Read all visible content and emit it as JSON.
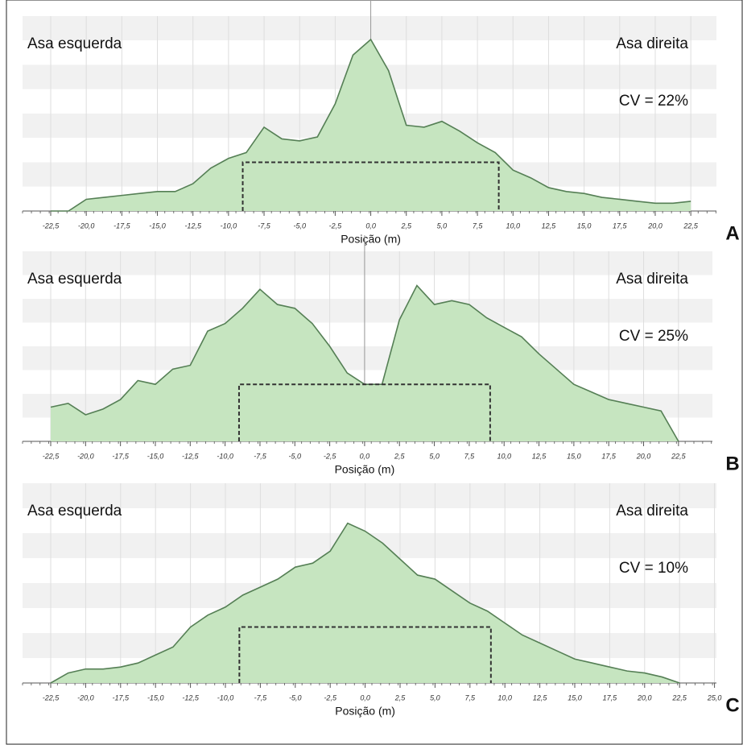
{
  "chart_data": [
    {
      "type": "area",
      "panel": "A",
      "xlabel": "Posição (m)",
      "annotations": [
        "Asa esquerda",
        "Asa direita",
        "CV = 22%"
      ],
      "color": "#c6e5c0",
      "line_color": "#557f55",
      "x": [
        -22.5,
        -21.25,
        -20,
        -18.75,
        -17.5,
        -16.25,
        -15,
        -13.75,
        -12.5,
        -11.25,
        -10,
        -8.75,
        -7.5,
        -6.25,
        -5,
        -3.75,
        -2.5,
        -1.25,
        0,
        1.25,
        2.5,
        3.75,
        5,
        6.25,
        7.5,
        8.75,
        10,
        11.25,
        12.5,
        13.75,
        15,
        16.25,
        17.5,
        18.75,
        20,
        21.25,
        22.5
      ],
      "values": [
        0,
        0,
        6,
        7,
        8,
        9,
        10,
        10,
        14,
        22,
        27,
        30,
        43,
        37,
        36,
        38,
        55,
        80,
        88,
        72,
        44,
        43,
        46,
        41,
        35,
        30,
        21,
        17,
        12,
        10,
        9,
        7,
        6,
        5,
        4,
        4,
        5
      ],
      "swath": {
        "x": [
          -9,
          9
        ],
        "y": 25
      },
      "ylim": [
        0,
        100
      ],
      "xticks": [
        {
          "value": -22.5,
          "label": "-22,5"
        },
        {
          "value": -20,
          "label": "-20,0"
        },
        {
          "value": -17.5,
          "label": "-17,5"
        },
        {
          "value": -15,
          "label": "-15,0"
        },
        {
          "value": -12.5,
          "label": "-12,5"
        },
        {
          "value": -10,
          "label": "-10,0"
        },
        {
          "value": -7.5,
          "label": "-7,5"
        },
        {
          "value": -5,
          "label": "-5,0"
        },
        {
          "value": -2.5,
          "label": "-2,5"
        },
        {
          "value": 0,
          "label": "0,0"
        },
        {
          "value": 2.5,
          "label": "2,5"
        },
        {
          "value": 5,
          "label": "5,0"
        },
        {
          "value": 7.5,
          "label": "7,5"
        },
        {
          "value": 10,
          "label": "10,0"
        },
        {
          "value": 12.5,
          "label": "12,5"
        },
        {
          "value": 15,
          "label": "15,0"
        },
        {
          "value": 17.5,
          "label": "17,5"
        },
        {
          "value": 20,
          "label": "20,0"
        },
        {
          "value": 22.5,
          "label": "22,5"
        }
      ]
    },
    {
      "type": "area",
      "panel": "B",
      "xlabel": "Posição (m)",
      "annotations": [
        "Asa esquerda",
        "Asa direita",
        "CV = 25%"
      ],
      "color": "#c6e5c0",
      "line_color": "#557f55",
      "x": [
        -22.5,
        -21.25,
        -20,
        -18.75,
        -17.5,
        -16.25,
        -15,
        -13.75,
        -12.5,
        -11.25,
        -10,
        -8.75,
        -7.5,
        -6.25,
        -5,
        -3.75,
        -2.5,
        -1.25,
        0,
        1.25,
        2.5,
        3.75,
        5,
        6.25,
        7.5,
        8.75,
        10,
        11.25,
        12.5,
        13.75,
        15,
        16.25,
        17.5,
        18.75,
        20,
        21.25,
        22.5
      ],
      "values": [
        18,
        20,
        14,
        17,
        22,
        32,
        30,
        38,
        40,
        58,
        62,
        70,
        80,
        72,
        70,
        62,
        50,
        36,
        30,
        30,
        64,
        82,
        72,
        74,
        72,
        65,
        60,
        55,
        46,
        38,
        30,
        26,
        22,
        20,
        18,
        16,
        0
      ],
      "swath": {
        "x": [
          -9,
          9
        ],
        "y": 30
      },
      "ylim": [
        0,
        100
      ],
      "xticks": [
        {
          "value": -22.5,
          "label": "-22,5"
        },
        {
          "value": -20,
          "label": "-20,0"
        },
        {
          "value": -17.5,
          "label": "-17,5"
        },
        {
          "value": -15,
          "label": "-15,0"
        },
        {
          "value": -12.5,
          "label": "-12,5"
        },
        {
          "value": -10,
          "label": "-10,0"
        },
        {
          "value": -7.5,
          "label": "-7,5"
        },
        {
          "value": -5,
          "label": "-5,0"
        },
        {
          "value": -2.5,
          "label": "-2,5"
        },
        {
          "value": 0,
          "label": "0,0"
        },
        {
          "value": 2.5,
          "label": "2,5"
        },
        {
          "value": 5,
          "label": "5,0"
        },
        {
          "value": 7.5,
          "label": "7,5"
        },
        {
          "value": 10,
          "label": "10,0"
        },
        {
          "value": 12.5,
          "label": "12,5"
        },
        {
          "value": 15,
          "label": "15,0"
        },
        {
          "value": 17.5,
          "label": "17,5"
        },
        {
          "value": 20,
          "label": "20,0"
        },
        {
          "value": 22.5,
          "label": "22,5"
        }
      ]
    },
    {
      "type": "area",
      "panel": "C",
      "xlabel": "Posição (m)",
      "annotations": [
        "Asa esquerda",
        "Asa direita",
        "CV = 10%"
      ],
      "color": "#c6e5c0",
      "line_color": "#557f55",
      "x": [
        -22.5,
        -21.25,
        -20,
        -18.75,
        -17.5,
        -16.25,
        -15,
        -13.75,
        -12.5,
        -11.25,
        -10,
        -8.75,
        -7.5,
        -6.25,
        -5,
        -3.75,
        -2.5,
        -1.25,
        0,
        1.25,
        2.5,
        3.75,
        5,
        6.25,
        7.5,
        8.75,
        10,
        11.25,
        12.5,
        13.75,
        15,
        16.25,
        17.5,
        18.75,
        20,
        21.25,
        22.5
      ],
      "values": [
        0,
        5,
        7,
        7,
        8,
        10,
        14,
        18,
        28,
        34,
        38,
        44,
        48,
        52,
        58,
        60,
        66,
        80,
        76,
        70,
        62,
        54,
        52,
        46,
        40,
        36,
        30,
        24,
        20,
        16,
        12,
        10,
        8,
        6,
        5,
        3,
        0
      ],
      "swath": {
        "x": [
          -9,
          9
        ],
        "y": 28
      },
      "ylim": [
        0,
        100
      ],
      "xticks": [
        {
          "value": -22.5,
          "label": "-22,5"
        },
        {
          "value": -20,
          "label": "-20,0"
        },
        {
          "value": -17.5,
          "label": "-17,5"
        },
        {
          "value": -15,
          "label": "-15,0"
        },
        {
          "value": -12.5,
          "label": "-12,5"
        },
        {
          "value": -10,
          "label": "-10,0"
        },
        {
          "value": -7.5,
          "label": "-7,5"
        },
        {
          "value": -5,
          "label": "-5,0"
        },
        {
          "value": -2.5,
          "label": "-2,5"
        },
        {
          "value": 0,
          "label": "0,0"
        },
        {
          "value": 2.5,
          "label": "2,5"
        },
        {
          "value": 5,
          "label": "5,0"
        },
        {
          "value": 7.5,
          "label": "7,5"
        },
        {
          "value": 10,
          "label": "10,0"
        },
        {
          "value": 12.5,
          "label": "12,5"
        },
        {
          "value": 15,
          "label": "15,0"
        },
        {
          "value": 17.5,
          "label": "17,5"
        },
        {
          "value": 20,
          "label": "20,0"
        },
        {
          "value": 22.5,
          "label": "22,5"
        },
        {
          "value": 25,
          "label": "25,0"
        }
      ]
    }
  ]
}
